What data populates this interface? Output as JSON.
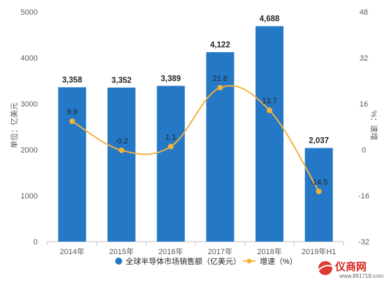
{
  "chart_data": {
    "type": "bar+line",
    "categories": [
      "2014年",
      "2015年",
      "2016年",
      "2017年",
      "2018年",
      "2019年H1"
    ],
    "series": [
      {
        "name": "全球半导体市场销售额（亿美元）",
        "type": "bar",
        "axis": "left",
        "values": [
          3358,
          3352,
          3389,
          4122,
          4688,
          2037
        ],
        "labels": [
          "3,358",
          "3,352",
          "3,389",
          "4,122",
          "4,688",
          "2,037"
        ]
      },
      {
        "name": "增速（%）",
        "type": "line",
        "axis": "right",
        "values": [
          9.9,
          -0.2,
          1.1,
          21.6,
          13.7,
          -14.5
        ],
        "labels": [
          "9.9",
          "-0.2",
          "1.1",
          "21.6",
          "13.7",
          "-14.5"
        ]
      }
    ],
    "ylabel_left": "单位：亿美元",
    "ylabel_right": "%：速增",
    "ylim_left": [
      0,
      5000
    ],
    "ylim_right": [
      -32,
      48
    ],
    "yticks_left": [
      "0",
      "1000",
      "2000",
      "3000",
      "4000",
      "5000"
    ],
    "yticks_right": [
      "-32",
      "-16",
      "0",
      "16",
      "32",
      "48"
    ],
    "colors": {
      "bar": "#2478c6",
      "line": "#f2b33d",
      "axis": "#bfbfbf"
    },
    "legend_position": "bottom",
    "grid": false
  },
  "brand": {
    "name": "仪商网",
    "url": "www.861718.com"
  }
}
